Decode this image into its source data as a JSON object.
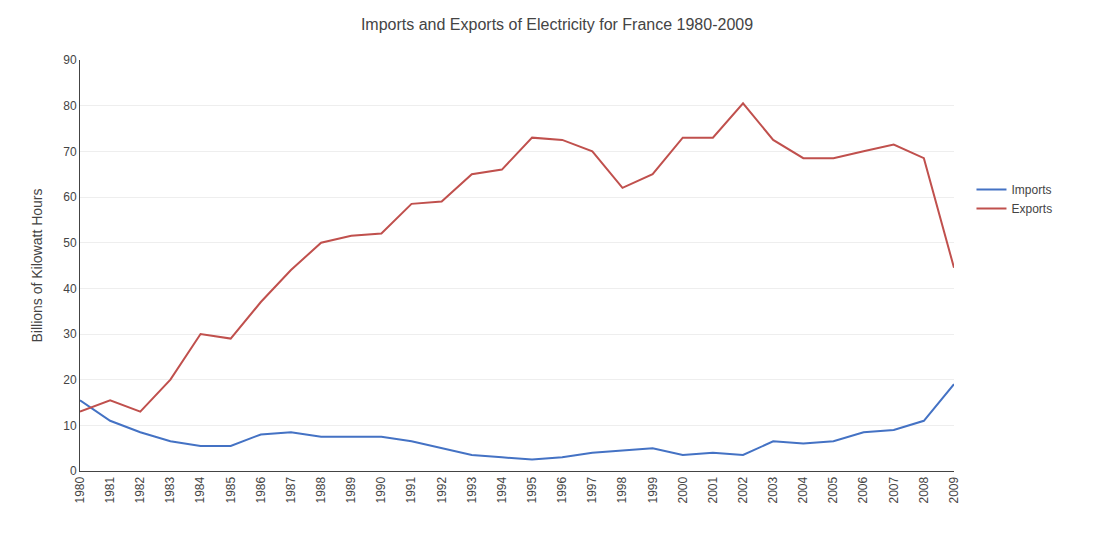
{
  "chart_data": {
    "type": "line",
    "title": "Imports and Exports of Electricity for France 1980-2009",
    "ylabel": "Billions of Kilowatt Hours",
    "x": [
      1980,
      1981,
      1982,
      1983,
      1984,
      1985,
      1986,
      1987,
      1988,
      1989,
      1990,
      1991,
      1992,
      1993,
      1994,
      1995,
      1996,
      1997,
      1998,
      1999,
      2000,
      2001,
      2002,
      2003,
      2004,
      2005,
      2006,
      2007,
      2008,
      2009
    ],
    "series": [
      {
        "name": "Imports",
        "color": "#4472C4",
        "values": [
          15.5,
          11.0,
          8.5,
          6.5,
          5.5,
          5.5,
          8.0,
          8.5,
          7.5,
          7.5,
          7.5,
          6.5,
          5.0,
          3.5,
          3.0,
          2.5,
          3.0,
          4.0,
          4.5,
          5.0,
          3.5,
          4.0,
          3.5,
          6.5,
          6.0,
          6.5,
          8.5,
          9.0,
          11.0,
          19.0
        ]
      },
      {
        "name": "Exports",
        "color": "#C0504D",
        "values": [
          13.0,
          15.5,
          13.0,
          20.0,
          30.0,
          29.0,
          37.0,
          44.0,
          50.0,
          51.5,
          52.0,
          58.5,
          59.0,
          65.0,
          66.0,
          73.0,
          72.5,
          70.0,
          62.0,
          65.0,
          73.0,
          73.0,
          80.5,
          72.5,
          68.5,
          68.5,
          70.0,
          71.5,
          68.5,
          44.5
        ]
      }
    ],
    "xlim": [
      1980,
      2009
    ],
    "xticks": [
      1980,
      1981,
      1982,
      1983,
      1984,
      1985,
      1986,
      1987,
      1988,
      1989,
      1990,
      1991,
      1992,
      1993,
      1994,
      1995,
      1996,
      1997,
      1998,
      1999,
      2000,
      2001,
      2002,
      2003,
      2004,
      2005,
      2006,
      2007,
      2008,
      2009
    ],
    "ylim": [
      0,
      90
    ],
    "yticks": [
      0,
      10,
      20,
      30,
      40,
      50,
      60,
      70,
      80,
      90
    ],
    "grid": "y",
    "legend": "right"
  }
}
